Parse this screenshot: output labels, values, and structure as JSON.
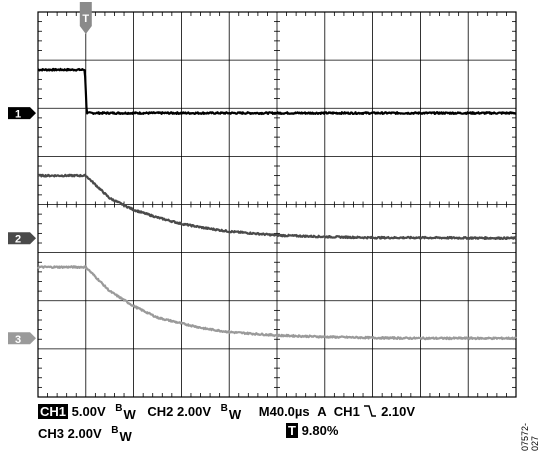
{
  "chart_data": {
    "type": "line",
    "title": "",
    "xlabel": "",
    "ylabel": "",
    "divisions": {
      "horizontal": 10,
      "vertical": 8
    },
    "xlim": [
      0,
      10
    ],
    "ylim": [
      0,
      8
    ],
    "grid": true,
    "trigger_marker": {
      "label": "T",
      "x": 1.0
    },
    "series": [
      {
        "channel": "1",
        "color": "#000000",
        "points": [
          [
            0,
            6.8
          ],
          [
            0.98,
            6.8
          ],
          [
            1.02,
            5.9
          ],
          [
            10,
            5.9
          ]
        ]
      },
      {
        "channel": "2",
        "color": "#4a4a4a",
        "points": [
          [
            0,
            4.6
          ],
          [
            1.0,
            4.6
          ],
          [
            1.5,
            4.13
          ],
          [
            2.0,
            3.89
          ],
          [
            2.5,
            3.73
          ],
          [
            3.0,
            3.6
          ],
          [
            3.5,
            3.51
          ],
          [
            4.0,
            3.44
          ],
          [
            5.0,
            3.36
          ],
          [
            6.0,
            3.33
          ],
          [
            7.0,
            3.31
          ],
          [
            8.0,
            3.31
          ],
          [
            10.0,
            3.3
          ]
        ]
      },
      {
        "channel": "3",
        "color": "#9a9a9a",
        "points": [
          [
            0,
            2.7
          ],
          [
            1.0,
            2.7
          ],
          [
            1.5,
            2.2
          ],
          [
            2.0,
            1.89
          ],
          [
            2.5,
            1.65
          ],
          [
            3.0,
            1.53
          ],
          [
            3.5,
            1.42
          ],
          [
            4.0,
            1.35
          ],
          [
            5.0,
            1.28
          ],
          [
            6.0,
            1.25
          ],
          [
            7.0,
            1.23
          ],
          [
            8.0,
            1.22
          ],
          [
            10.0,
            1.22
          ]
        ]
      }
    ],
    "channel_markers": [
      {
        "label": "1",
        "level": 5.9,
        "color": "#000000"
      },
      {
        "label": "2",
        "level": 3.3,
        "color": "#4a4a4a"
      },
      {
        "label": "3",
        "level": 1.22,
        "color": "#9a9a9a"
      }
    ]
  },
  "readout": {
    "ch1_label": "CH1",
    "ch1_scale": "5.00V",
    "bw1": "B",
    "bw1_sub": "W",
    "ch2_label": "CH2",
    "ch2_scale": "2.00V",
    "bw2": "B",
    "bw2_sub": "W",
    "timebase": "M40.0µs",
    "trigger_mode": "A",
    "trigger_channel": "CH1",
    "trigger_slope_icon": "falling-edge-icon",
    "trigger_level": "2.10V",
    "ch3_label": "CH3",
    "ch3_scale": "2.00V",
    "bw3": "B",
    "bw3_sub": "W",
    "trigger_pos_icon_label": "T",
    "trigger_position": "9.80%"
  },
  "figure_id": "07572-027"
}
